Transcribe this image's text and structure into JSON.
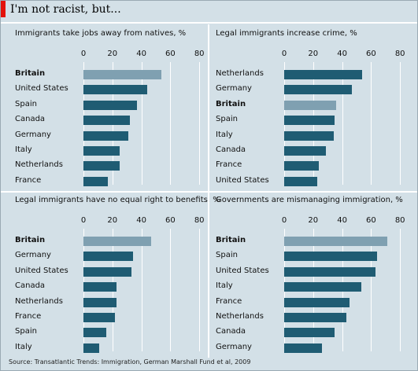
{
  "header": {
    "title": "I'm not racist, but..."
  },
  "source": "Source: Transatlantic Trends: Immigration, German Marshall Fund et al, 2009",
  "colors": {
    "accent": "#e3120b",
    "bar": "#1f5c73",
    "highlight_bar": "#7fa0b1",
    "background": "#d3e0e7"
  },
  "chart_data": [
    {
      "type": "bar",
      "orientation": "horizontal",
      "title": "Immigrants take jobs away from natives, %",
      "ticks": [
        "0",
        "20",
        "40",
        "60",
        "80"
      ],
      "xlim": [
        0,
        80
      ],
      "highlight": "Britain",
      "categories": [
        "Britain",
        "United States",
        "Spain",
        "Canada",
        "Germany",
        "Italy",
        "Netherlands",
        "France"
      ],
      "values": [
        54,
        44,
        37,
        32,
        31,
        25,
        25,
        17
      ]
    },
    {
      "type": "bar",
      "orientation": "horizontal",
      "title": "Legal immigrants increase crime, %",
      "ticks": [
        "0",
        "20",
        "40",
        "60",
        "80"
      ],
      "xlim": [
        0,
        80
      ],
      "highlight": "Britain",
      "categories": [
        "Netherlands",
        "Germany",
        "Britain",
        "Spain",
        "Italy",
        "Canada",
        "France",
        "United States"
      ],
      "values": [
        54,
        47,
        36,
        35,
        34,
        29,
        24,
        23
      ]
    },
    {
      "type": "bar",
      "orientation": "horizontal",
      "title": "Legal immigrants have no equal right to benefits, %",
      "ticks": [
        "0",
        "20",
        "40",
        "60",
        "80"
      ],
      "xlim": [
        0,
        80
      ],
      "highlight": "Britain",
      "categories": [
        "Britain",
        "Germany",
        "United States",
        "Canada",
        "Netherlands",
        "France",
        "Spain",
        "Italy"
      ],
      "values": [
        47,
        34,
        33,
        23,
        23,
        22,
        16,
        11
      ]
    },
    {
      "type": "bar",
      "orientation": "horizontal",
      "title": "Governments are mismanaging immigration, %",
      "ticks": [
        "0",
        "20",
        "40",
        "60",
        "80"
      ],
      "xlim": [
        0,
        80
      ],
      "highlight": "Britain",
      "categories": [
        "Britain",
        "Spain",
        "United States",
        "Italy",
        "France",
        "Netherlands",
        "Canada",
        "Germany"
      ],
      "values": [
        71,
        64,
        63,
        53,
        45,
        43,
        35,
        26
      ]
    }
  ]
}
